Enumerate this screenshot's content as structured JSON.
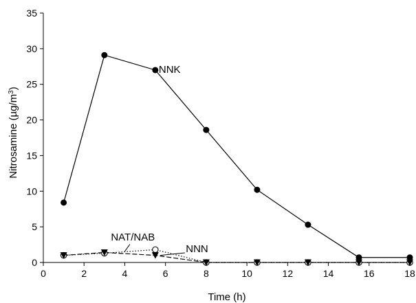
{
  "chart_data": {
    "type": "line",
    "title": "",
    "xlabel": "Time (h)",
    "ylabel": "Nitrosamine (µg/m³)",
    "ylabel_parts": {
      "main": "Nitrosamine (µg/m",
      "sup": "3",
      "close": ")"
    },
    "xlim": [
      0,
      18
    ],
    "ylim": [
      0,
      35
    ],
    "xticks": [
      0,
      2,
      4,
      6,
      8,
      10,
      12,
      14,
      16,
      18
    ],
    "yticks": [
      0,
      5,
      10,
      15,
      20,
      25,
      30,
      35
    ],
    "grid": false,
    "legend": "none",
    "series": [
      {
        "name": "NNK",
        "marker": "filled-circle",
        "line": "solid",
        "color": "#000000",
        "x": [
          1,
          3,
          5.5,
          8,
          10.5,
          13,
          15.5,
          18
        ],
        "y": [
          8.4,
          29.1,
          27.0,
          18.6,
          10.2,
          5.3,
          0.7,
          0.7
        ]
      },
      {
        "name": "NAT/NAB",
        "marker": "open-circle",
        "line": "dotted",
        "color": "#000000",
        "x": [
          1,
          3,
          5.5,
          8,
          10.5,
          13,
          15.5,
          18
        ],
        "y": [
          1.0,
          1.3,
          1.8,
          0.0,
          0.0,
          0.0,
          0.0,
          0.0
        ]
      },
      {
        "name": "NNN",
        "marker": "filled-triangle-down",
        "line": "dashed",
        "color": "#000000",
        "x": [
          1,
          3,
          5.5,
          8,
          10.5,
          13,
          15.5,
          18
        ],
        "y": [
          1.0,
          1.4,
          1.0,
          0.0,
          0.0,
          0.0,
          0.0,
          0.0
        ]
      }
    ],
    "annotations": [
      {
        "text": "NNK",
        "series": "NNK"
      },
      {
        "text": "NAT/NAB",
        "series": "NAT/NAB"
      },
      {
        "text": "NNN",
        "series": "NNN"
      }
    ]
  }
}
